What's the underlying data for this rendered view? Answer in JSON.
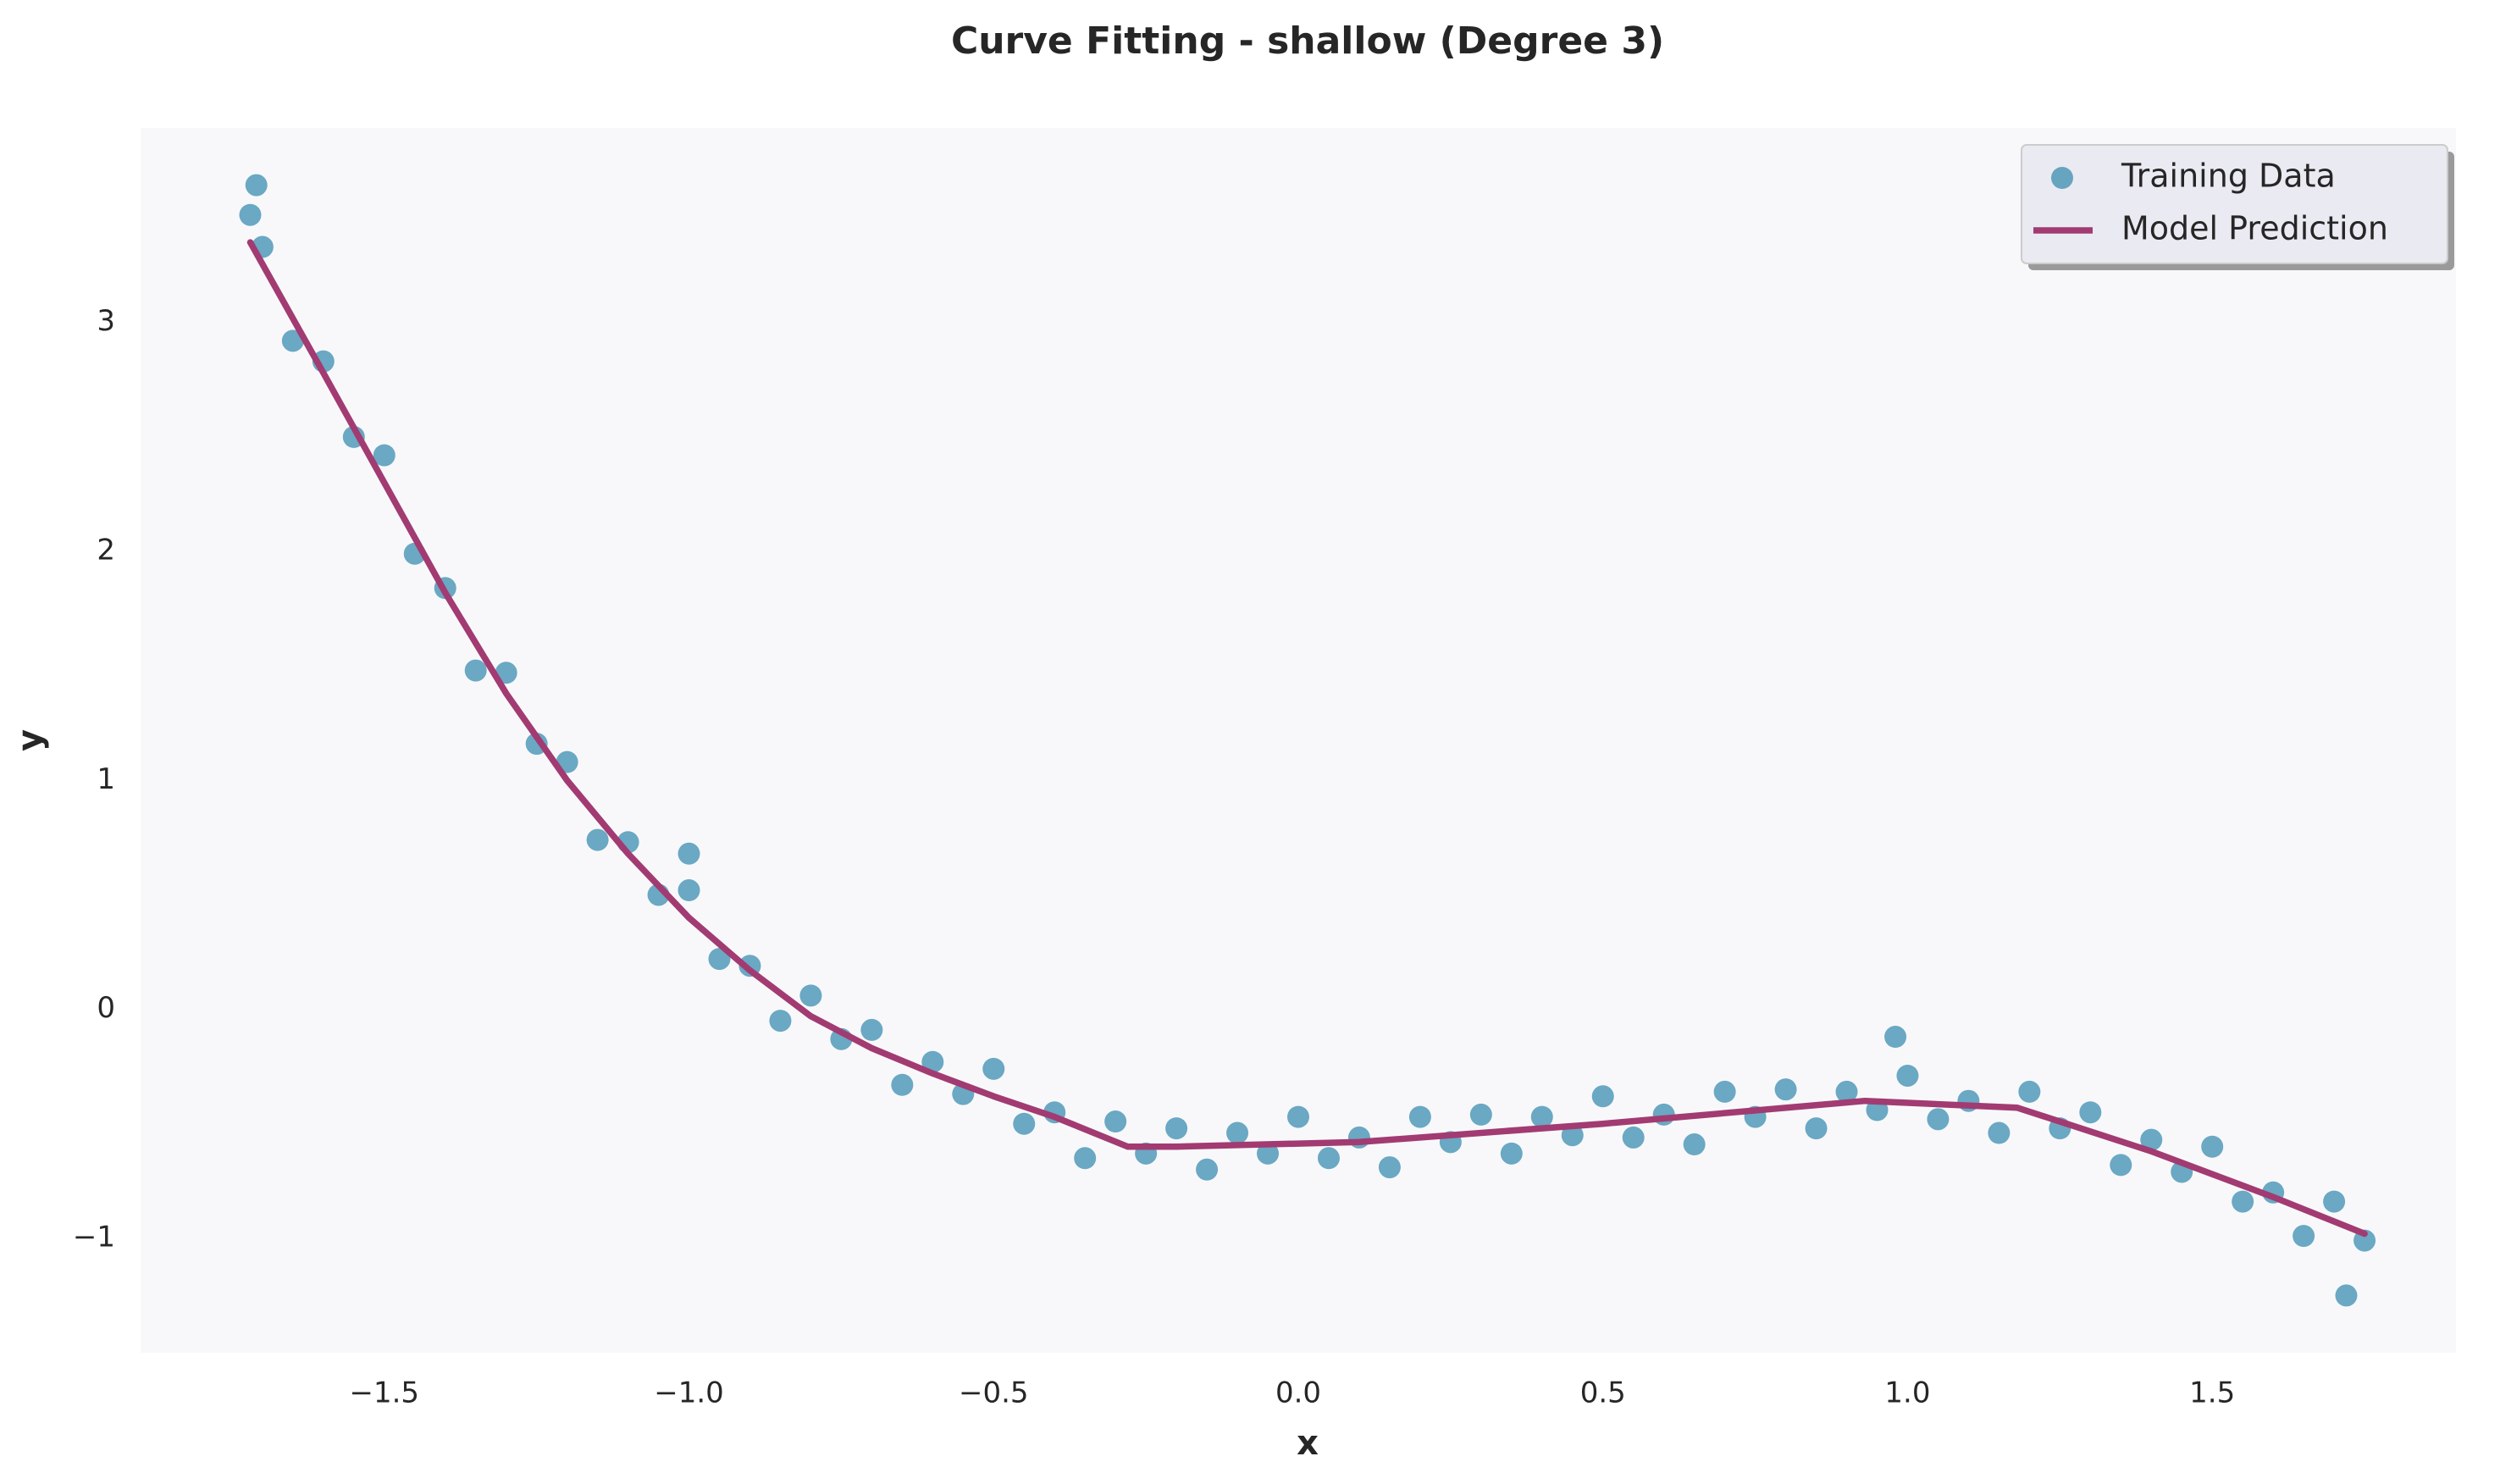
{
  "chart_data": {
    "type": "scatter",
    "title": "Curve Fitting - shallow (Degree 3)",
    "x_label": "x",
    "y_label": "y",
    "xlim": [
      -1.9,
      1.9
    ],
    "ylim": [
      -1.5,
      3.85
    ],
    "xticks": [
      {
        "value": -1.5,
        "label": "−1.5"
      },
      {
        "value": -1.0,
        "label": "−1.0"
      },
      {
        "value": -0.5,
        "label": "−0.5"
      },
      {
        "value": 0.0,
        "label": "0.0"
      },
      0.5,
      {
        "value": 1.0,
        "label": "1.0"
      },
      1.5
    ],
    "yticks": [
      {
        "value": -1,
        "label": "−1"
      },
      0,
      1,
      2,
      3
    ],
    "grid": false,
    "legend": "upper right",
    "series": [
      {
        "name": "Training Data",
        "type": "scatter",
        "color": "#2e86ab",
        "x": [
          -1.7,
          -1.65,
          -1.6,
          -1.55,
          -1.5,
          -1.45,
          -1.4,
          -1.35,
          -1.3,
          -1.25,
          -1.2,
          -1.15,
          -1.1,
          -1.05,
          -1.0,
          -0.95,
          -0.9,
          -0.85,
          -0.8,
          -0.75,
          -0.7,
          -0.65,
          -0.6,
          -0.55,
          -0.5,
          -0.45,
          -0.4,
          -0.35,
          -0.3,
          -0.25,
          -0.2,
          -0.15,
          -0.1,
          -0.05,
          0.0,
          0.05,
          0.1,
          0.15,
          0.2,
          0.25,
          0.3,
          0.35,
          0.4,
          0.45,
          0.5,
          0.55,
          0.6,
          0.65,
          0.7,
          0.75,
          0.8,
          0.85,
          0.9,
          0.95,
          1.0,
          1.05,
          1.1,
          1.15,
          1.2,
          1.25,
          1.3,
          1.35,
          1.4,
          1.45,
          1.5,
          1.55,
          1.6,
          1.65,
          1.7,
          1.75,
          -1.71,
          -1.72,
          0.98,
          1.72,
          -1.0
        ],
        "values": [
          3.33,
          2.92,
          2.83,
          2.5,
          2.42,
          1.99,
          1.84,
          1.48,
          1.47,
          1.16,
          1.08,
          0.74,
          0.73,
          0.5,
          0.52,
          0.22,
          0.19,
          -0.05,
          0.06,
          -0.13,
          -0.09,
          -0.33,
          -0.23,
          -0.37,
          -0.26,
          -0.5,
          -0.45,
          -0.65,
          -0.49,
          -0.63,
          -0.52,
          -0.7,
          -0.54,
          -0.63,
          -0.47,
          -0.65,
          -0.56,
          -0.69,
          -0.47,
          -0.58,
          -0.46,
          -0.63,
          -0.47,
          -0.55,
          -0.38,
          -0.56,
          -0.46,
          -0.59,
          -0.36,
          -0.47,
          -0.35,
          -0.52,
          -0.36,
          -0.44,
          -0.29,
          -0.48,
          -0.4,
          -0.54,
          -0.36,
          -0.52,
          -0.45,
          -0.68,
          -0.57,
          -0.71,
          -0.6,
          -0.84,
          -0.8,
          -0.99,
          -0.84,
          -1.01,
          3.6,
          3.47,
          -0.12,
          -1.25,
          0.68
        ]
      },
      {
        "name": "Model Prediction",
        "type": "line",
        "color": "#a23b72",
        "x": [
          -1.72,
          -1.6,
          -1.5,
          -1.4,
          -1.3,
          -1.2,
          -1.1,
          -1.0,
          -0.9,
          -0.8,
          -0.7,
          -0.6,
          -0.5,
          -0.4,
          -0.28,
          -0.2,
          0.1,
          0.5,
          0.93,
          1.18,
          1.4,
          1.6,
          1.75
        ],
        "values": [
          3.35,
          2.78,
          2.3,
          1.82,
          1.38,
          1.0,
          0.68,
          0.4,
          0.17,
          -0.03,
          -0.17,
          -0.28,
          -0.38,
          -0.47,
          -0.6,
          -0.6,
          -0.58,
          -0.5,
          -0.4,
          -0.43,
          -0.62,
          -0.82,
          -0.98
        ]
      }
    ]
  }
}
